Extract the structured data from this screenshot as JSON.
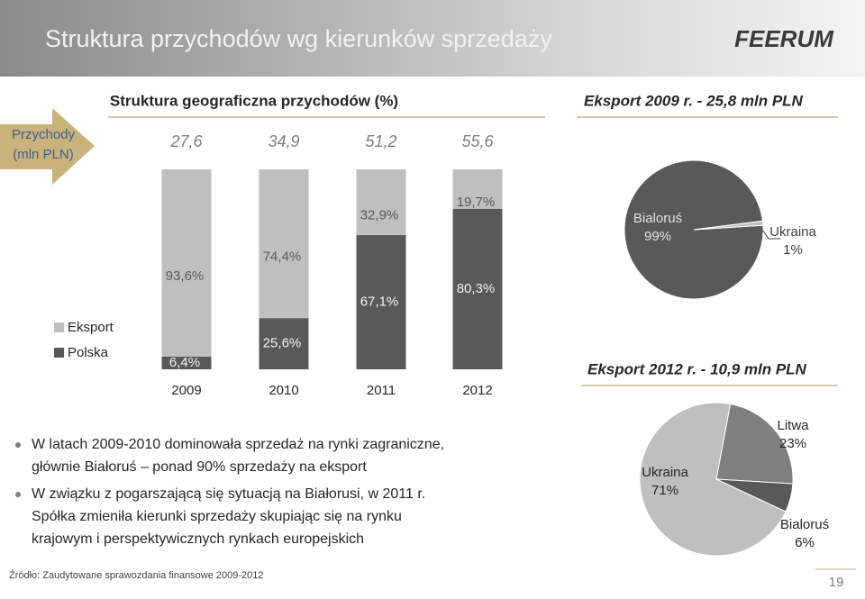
{
  "slide": {
    "title": "Struktura przychodów wg kierunków sprzedaży",
    "logo": "FEERUM",
    "bullets": [
      [
        "W latach 2009-2010 dominowała sprzedaż na rynki zagraniczne,",
        "głównie Białoruś – ponad 90% sprzedaży na eksport"
      ],
      [
        "W związku z pogarszającą się sytuacją na Białorusi, w 2011 r.",
        "Spółka zmieniła kierunki sprzedaży skupiając się na rynku",
        "krajowym i perspektywicznych rynkach europejskich"
      ]
    ],
    "source": "Źródło: Zaudytowane sprawozdania finansowe 2009-2012",
    "page": "19"
  },
  "chart_data": [
    {
      "type": "bar",
      "stacked": true,
      "title": "Struktura geograficzna przychodów (%)",
      "totals_title": [
        "Przychody",
        "(mln PLN)"
      ],
      "totals": [
        {
          "value": 27.6,
          "label": "27,6"
        },
        {
          "value": 34.9,
          "label": "34,9"
        },
        {
          "value": 51.2,
          "label": "51,2"
        },
        {
          "value": 55.6,
          "label": "55,6"
        }
      ],
      "categories": [
        "2009",
        "2010",
        "2011",
        "2012"
      ],
      "ylim": [
        0,
        100
      ],
      "series": [
        {
          "name": "Eksport",
          "color": "#bfbfbf",
          "values": [
            93.6,
            74.4,
            32.9,
            19.7
          ],
          "value_labels": [
            "93,6%",
            "74,4%",
            "32,9%",
            "19,7%"
          ]
        },
        {
          "name": "Polska",
          "color": "#595959",
          "values": [
            6.4,
            25.6,
            67.1,
            80.3
          ],
          "value_labels": [
            "6,4%",
            "25,6%",
            "67,1%",
            "80,3%"
          ]
        }
      ]
    },
    {
      "type": "pie",
      "title": "Eksport 2009 r. - 25,8 mln PLN",
      "categories": [
        "Bialoruś",
        "Ukraina"
      ],
      "values": [
        99,
        1
      ],
      "value_labels": [
        "99%",
        "1%"
      ],
      "colors": [
        "#595959",
        "#bfbfbf"
      ]
    },
    {
      "type": "pie",
      "title": "Eksport 2012 r. - 10,9 mln PLN",
      "categories": [
        "Ukraina",
        "Litwa",
        "Bialoruś"
      ],
      "values": [
        71,
        23,
        6
      ],
      "value_labels": [
        "71%",
        "23%",
        "6%"
      ],
      "colors": [
        "#bfbfbf",
        "#7f7f7f",
        "#595959"
      ]
    }
  ]
}
